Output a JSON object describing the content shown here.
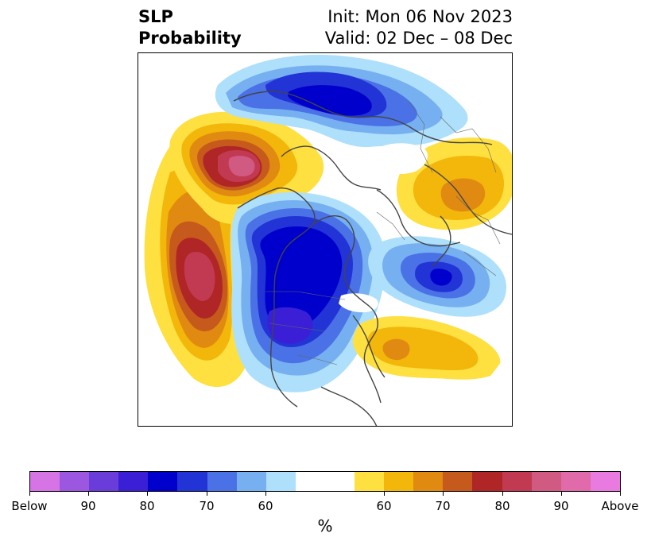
{
  "header": {
    "title_line1": "SLP",
    "title_line2": "Probability",
    "init_text": "Init: Mon 06 Nov 2023",
    "valid_text": "Valid: 02 Dec – 08 Dec"
  },
  "colorbar": {
    "unit_label": "%",
    "tick_labels": [
      "Below",
      "90",
      "80",
      "70",
      "60",
      "60",
      "70",
      "80",
      "90",
      "Above"
    ],
    "colors": [
      "#d674e6",
      "#9b57e0",
      "#6a3ddb",
      "#3a1fd6",
      "#0000cc",
      "#2234d6",
      "#4a72e6",
      "#76b0f0",
      "#aee0fb",
      "#ffffff",
      "#ffffff",
      "#fee040",
      "#f3b60a",
      "#e08a12",
      "#c65a1c",
      "#b02626",
      "#c23a52",
      "#d05a82",
      "#e06aaa",
      "#e87ae0"
    ]
  },
  "map": {
    "projection": "north-polar-stereographic",
    "palette": {
      "blue_dark": "#0000cc",
      "blue_mid": "#2234d6",
      "blue_light": "#4a72e6",
      "blue_pale": "#76b0f0",
      "blue_faint": "#aee0fb",
      "yellow": "#fee040",
      "gold": "#f3b60a",
      "orange": "#e08a12",
      "rust": "#c65a1c",
      "red": "#b02626",
      "rose": "#c23a52",
      "pink": "#d05a82"
    }
  }
}
